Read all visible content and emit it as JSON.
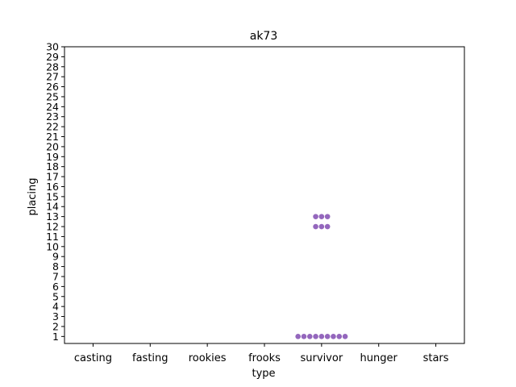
{
  "chart_data": {
    "type": "scatter",
    "subtype": "swarm",
    "title": "ak73",
    "xlabel": "type",
    "ylabel": "placing",
    "categories": [
      "casting",
      "fasting",
      "rookies",
      "frooks",
      "survivor",
      "hunger",
      "stars"
    ],
    "yticks": [
      1,
      2,
      3,
      4,
      5,
      6,
      7,
      8,
      9,
      10,
      11,
      12,
      13,
      14,
      15,
      16,
      17,
      18,
      19,
      20,
      21,
      22,
      23,
      24,
      25,
      26,
      27,
      28,
      29,
      30
    ],
    "ylim": [
      0.3,
      30
    ],
    "grid": false,
    "legend": "none",
    "series": [
      {
        "color": "#9467bd",
        "points": [
          {
            "category": "survivor",
            "y": 13
          },
          {
            "category": "survivor",
            "y": 13
          },
          {
            "category": "survivor",
            "y": 13
          },
          {
            "category": "survivor",
            "y": 12
          },
          {
            "category": "survivor",
            "y": 12
          },
          {
            "category": "survivor",
            "y": 12
          },
          {
            "category": "survivor",
            "y": 1
          },
          {
            "category": "survivor",
            "y": 1
          },
          {
            "category": "survivor",
            "y": 1
          },
          {
            "category": "survivor",
            "y": 1
          },
          {
            "category": "survivor",
            "y": 1
          },
          {
            "category": "survivor",
            "y": 1
          },
          {
            "category": "survivor",
            "y": 1
          },
          {
            "category": "survivor",
            "y": 1
          },
          {
            "category": "survivor",
            "y": 1
          }
        ]
      }
    ]
  }
}
